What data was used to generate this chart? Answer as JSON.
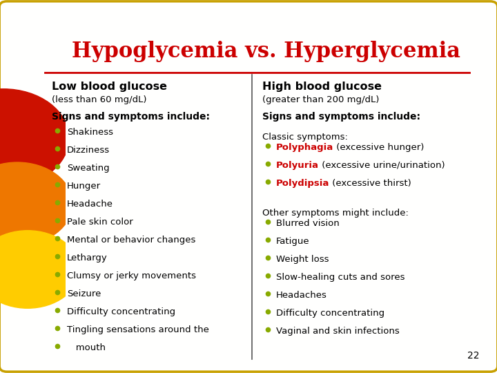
{
  "title": "Hypoglycemia vs. Hyperglycemia",
  "title_color": "#cc0000",
  "title_fontsize": 22,
  "bg_color": "#fffffe",
  "border_color": "#c8a000",
  "left_heading": "Low blood glucose",
  "left_subheading": "(less than 60 mg/dL)",
  "left_signs": "Signs and symptoms include:",
  "left_items": [
    "Shakiness",
    "Dizziness",
    "Sweating",
    "Hunger",
    "Headache",
    "Pale skin color",
    "Mental or behavior changes",
    "Lethargy",
    "Clumsy or jerky movements",
    "Seizure",
    "Difficulty concentrating",
    "Tingling sensations around the",
    "   mouth"
  ],
  "right_heading": "High blood glucose",
  "right_subheading": "(greater than 200 mg/dL)",
  "right_signs": "Signs and symptoms include:",
  "right_classic_label": "Classic symptoms:",
  "right_classic_items": [
    [
      "Polyphagia",
      " (excessive hunger)"
    ],
    [
      "Polyuria",
      " (excessive urine/urination)"
    ],
    [
      "Polydipsia",
      " (excessive thirst)"
    ]
  ],
  "right_other_label": "Other symptoms might include:",
  "right_other_items": [
    "Blurred vision",
    "Fatigue",
    "Weight loss",
    "Slow-healing cuts and sores",
    "Headaches",
    "Difficulty concentrating",
    "Vaginal and skin infections"
  ],
  "heading_color": "#000000",
  "heading_fontsize": 11.5,
  "subheading_fontsize": 9.5,
  "signs_fontsize": 10,
  "item_fontsize": 9.5,
  "bullet_color": "#88aa00",
  "classic_color": "#cc0000",
  "divider_color": "#555555",
  "page_number": "22",
  "circle_red": "#cc1100",
  "circle_orange": "#ee7700",
  "circle_yellow": "#ffcc00"
}
